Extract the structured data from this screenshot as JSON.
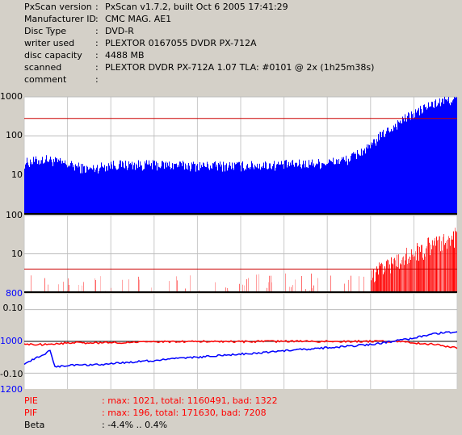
{
  "info": [
    {
      "label": "PxScan version",
      "value": "PxScan v1.7.2, built Oct  6 2005 17:41:29"
    },
    {
      "label": "Manufacturer ID",
      "value": "CMC MAG. AE1"
    },
    {
      "label": "Disc Type",
      "value": "DVD-R"
    },
    {
      "label": "writer used",
      "value": "PLEXTOR 0167055 DVDR PX-712A"
    },
    {
      "label": "disc capacity",
      "value": "4488 MB"
    },
    {
      "label": "scanned",
      "value": "PLEXTOR DVDR PX-712A 1.07 TLA: #0101 @ 2x (1h25m38s)"
    },
    {
      "label": "comment",
      "value": ""
    }
  ],
  "colon": ":",
  "axes": {
    "pie_ticks": [
      "1000",
      "100",
      "10"
    ],
    "pif_ticks": [
      "100",
      "10",
      "800"
    ],
    "beta_ticks": [
      "0.10",
      "1000",
      "-0.10",
      "1200"
    ]
  },
  "summary": [
    {
      "label": "PIE",
      "value": ": max: 1021, total: 1160491, bad: 1322",
      "color": "#ff0000"
    },
    {
      "label": "PIF",
      "value": ": max: 196, total: 171630, bad: 7208",
      "color": "#ff0000"
    },
    {
      "label": "Beta",
      "value": ": -4.4% .. 0.4%",
      "color": "#000000"
    }
  ],
  "colors": {
    "panel_bg": "#d4d0c8",
    "plot_bg": "#ffffff",
    "pie_fill": "#0000ff",
    "pif_fill": "#ff0000",
    "threshold": "#cc0000",
    "beta_pie": "#ff0000",
    "beta_pif": "#0000ff",
    "grid": "#000000"
  },
  "chart_data": [
    {
      "type": "area",
      "name": "PIE",
      "y_scale": "log",
      "ylim": [
        1,
        1000
      ],
      "y_ticks": [
        1000,
        100,
        10
      ],
      "threshold": 280,
      "x": [
        0,
        0.05,
        0.1,
        0.15,
        0.2,
        0.3,
        0.4,
        0.5,
        0.6,
        0.7,
        0.75,
        0.8,
        0.85,
        0.9,
        0.95,
        1.0
      ],
      "values": [
        18,
        22,
        16,
        12,
        16,
        16,
        15,
        15,
        16,
        18,
        22,
        45,
        140,
        320,
        600,
        800
      ]
    },
    {
      "type": "bar",
      "name": "PIF",
      "y_scale": "log",
      "ylim": [
        1,
        100
      ],
      "y_ticks": [
        100,
        10
      ],
      "threshold": 4,
      "x": [
        0,
        0.1,
        0.2,
        0.3,
        0.4,
        0.5,
        0.6,
        0.7,
        0.8,
        0.85,
        0.9,
        0.95,
        1.0
      ],
      "values": [
        1.5,
        1.2,
        1.3,
        1.2,
        1.3,
        1.4,
        1.4,
        1.5,
        2,
        4,
        8,
        15,
        25
      ]
    },
    {
      "type": "line",
      "name": "Beta",
      "ylim": [
        -0.15,
        0.15
      ],
      "y_ticks": [
        0.1,
        -0.1
      ],
      "series": [
        {
          "x": [
            0,
            0.05,
            0.1,
            0.2,
            0.3,
            0.4,
            0.5,
            0.6,
            0.7,
            0.8,
            0.85,
            0.9,
            0.95,
            1.0
          ],
          "values": [
            -0.01,
            -0.01,
            -0.005,
            -0.004,
            -0.002,
            0.0,
            -0.001,
            0.0,
            0.0,
            0.0,
            0.0,
            -0.005,
            -0.01,
            -0.02
          ],
          "color": "#ff0000"
        },
        {
          "x": [
            0,
            0.03,
            0.06,
            0.07,
            0.1,
            0.15,
            0.2,
            0.3,
            0.4,
            0.5,
            0.6,
            0.7,
            0.8,
            0.85,
            0.9,
            0.95,
            1.0
          ],
          "values": [
            -0.07,
            -0.05,
            -0.03,
            -0.08,
            -0.075,
            -0.075,
            -0.07,
            -0.06,
            -0.05,
            -0.04,
            -0.03,
            -0.02,
            -0.01,
            0.0,
            0.01,
            0.025,
            0.03
          ],
          "color": "#0000ff"
        }
      ]
    }
  ]
}
